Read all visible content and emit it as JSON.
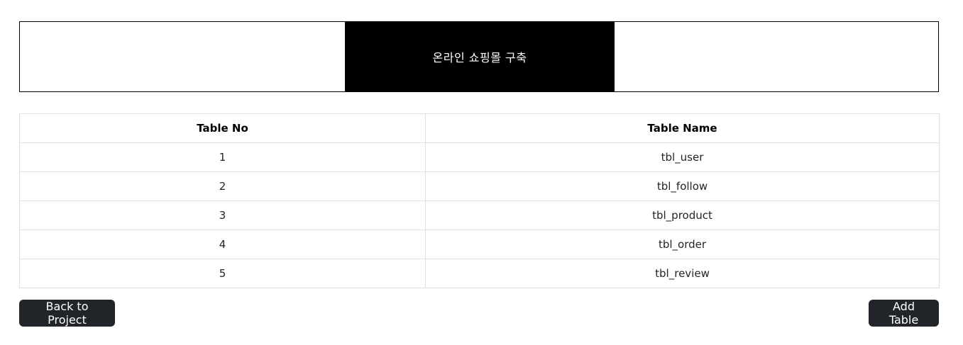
{
  "project": {
    "title": "온라인 쇼핑몰 구축"
  },
  "table": {
    "headers": {
      "no": "Table No",
      "name": "Table Name"
    },
    "rows": [
      {
        "no": "1",
        "name": "tbl_user"
      },
      {
        "no": "2",
        "name": "tbl_follow"
      },
      {
        "no": "3",
        "name": "tbl_product"
      },
      {
        "no": "4",
        "name": "tbl_order"
      },
      {
        "no": "5",
        "name": "tbl_review"
      }
    ]
  },
  "buttons": {
    "back_label": "Back to Project",
    "add_label": "Add Table"
  },
  "colors": {
    "header_box": "#000000",
    "button_bg": "#212529",
    "table_border": "#dee2e6"
  }
}
